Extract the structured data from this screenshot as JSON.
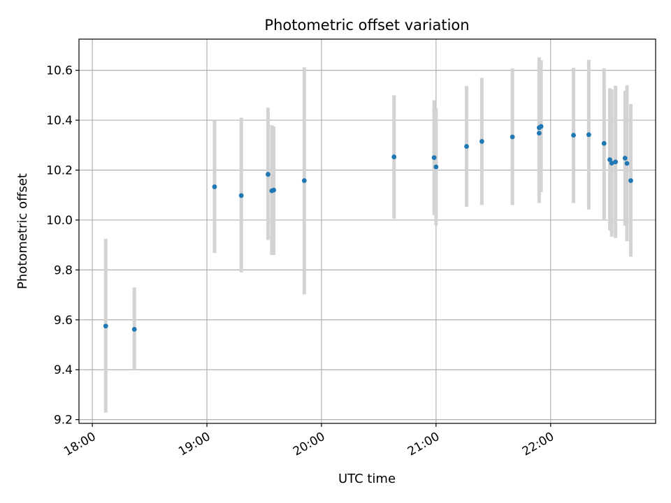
{
  "chart_data": {
    "type": "scatter",
    "title": "Photometric offset variation",
    "xlabel": "UTC time",
    "ylabel": "Photometric offset",
    "x_ticks": [
      "18:00",
      "19:00",
      "20:00",
      "21:00",
      "22:00"
    ],
    "y_ticks": [
      "9.2",
      "9.4",
      "9.6",
      "9.8",
      "10.0",
      "10.2",
      "10.4",
      "10.6"
    ],
    "ylim": [
      9.185,
      10.725
    ],
    "xlim": [
      "17:53",
      "22:55"
    ],
    "grid": true,
    "colors": {
      "point": "#1f77b4",
      "errorbar": "#d3d3d3",
      "grid": "#b0b0b0"
    },
    "points": [
      {
        "x": "18:07",
        "y": 9.575,
        "ylow": 9.228,
        "yhigh": 9.925
      },
      {
        "x": "18:22",
        "y": 9.562,
        "ylow": 9.4,
        "yhigh": 9.73
      },
      {
        "x": "19:04",
        "y": 10.133,
        "ylow": 9.868,
        "yhigh": 10.4
      },
      {
        "x": "19:18",
        "y": 10.098,
        "ylow": 9.79,
        "yhigh": 10.41
      },
      {
        "x": "19:32",
        "y": 10.183,
        "ylow": 9.92,
        "yhigh": 10.45
      },
      {
        "x": "19:34",
        "y": 10.117,
        "ylow": 9.86,
        "yhigh": 10.38
      },
      {
        "x": "19:35",
        "y": 10.12,
        "ylow": 9.86,
        "yhigh": 10.375
      },
      {
        "x": "19:51",
        "y": 10.158,
        "ylow": 9.702,
        "yhigh": 10.612
      },
      {
        "x": "20:38",
        "y": 10.253,
        "ylow": 10.005,
        "yhigh": 10.5
      },
      {
        "x": "20:59",
        "y": 10.25,
        "ylow": 10.02,
        "yhigh": 10.48
      },
      {
        "x": "21:00",
        "y": 10.213,
        "ylow": 9.978,
        "yhigh": 10.448
      },
      {
        "x": "21:16",
        "y": 10.295,
        "ylow": 10.053,
        "yhigh": 10.537
      },
      {
        "x": "21:24",
        "y": 10.315,
        "ylow": 10.06,
        "yhigh": 10.57
      },
      {
        "x": "21:40",
        "y": 10.333,
        "ylow": 10.06,
        "yhigh": 10.607
      },
      {
        "x": "21:54",
        "y": 10.37,
        "ylow": 10.09,
        "yhigh": 10.652
      },
      {
        "x": "21:54",
        "y": 10.348,
        "ylow": 10.068,
        "yhigh": 10.63
      },
      {
        "x": "21:55",
        "y": 10.375,
        "ylow": 10.112,
        "yhigh": 10.64
      },
      {
        "x": "22:12",
        "y": 10.34,
        "ylow": 10.068,
        "yhigh": 10.61
      },
      {
        "x": "22:20",
        "y": 10.342,
        "ylow": 10.042,
        "yhigh": 10.642
      },
      {
        "x": "22:28",
        "y": 10.307,
        "ylow": 10.003,
        "yhigh": 10.608
      },
      {
        "x": "22:31",
        "y": 10.242,
        "ylow": 9.958,
        "yhigh": 10.528
      },
      {
        "x": "22:32",
        "y": 10.228,
        "ylow": 9.933,
        "yhigh": 10.523
      },
      {
        "x": "22:34",
        "y": 10.233,
        "ylow": 9.928,
        "yhigh": 10.538
      },
      {
        "x": "22:39",
        "y": 10.248,
        "ylow": 9.977,
        "yhigh": 10.518
      },
      {
        "x": "22:40",
        "y": 10.227,
        "ylow": 9.915,
        "yhigh": 10.54
      },
      {
        "x": "22:42",
        "y": 10.158,
        "ylow": 9.853,
        "yhigh": 10.465
      }
    ]
  }
}
